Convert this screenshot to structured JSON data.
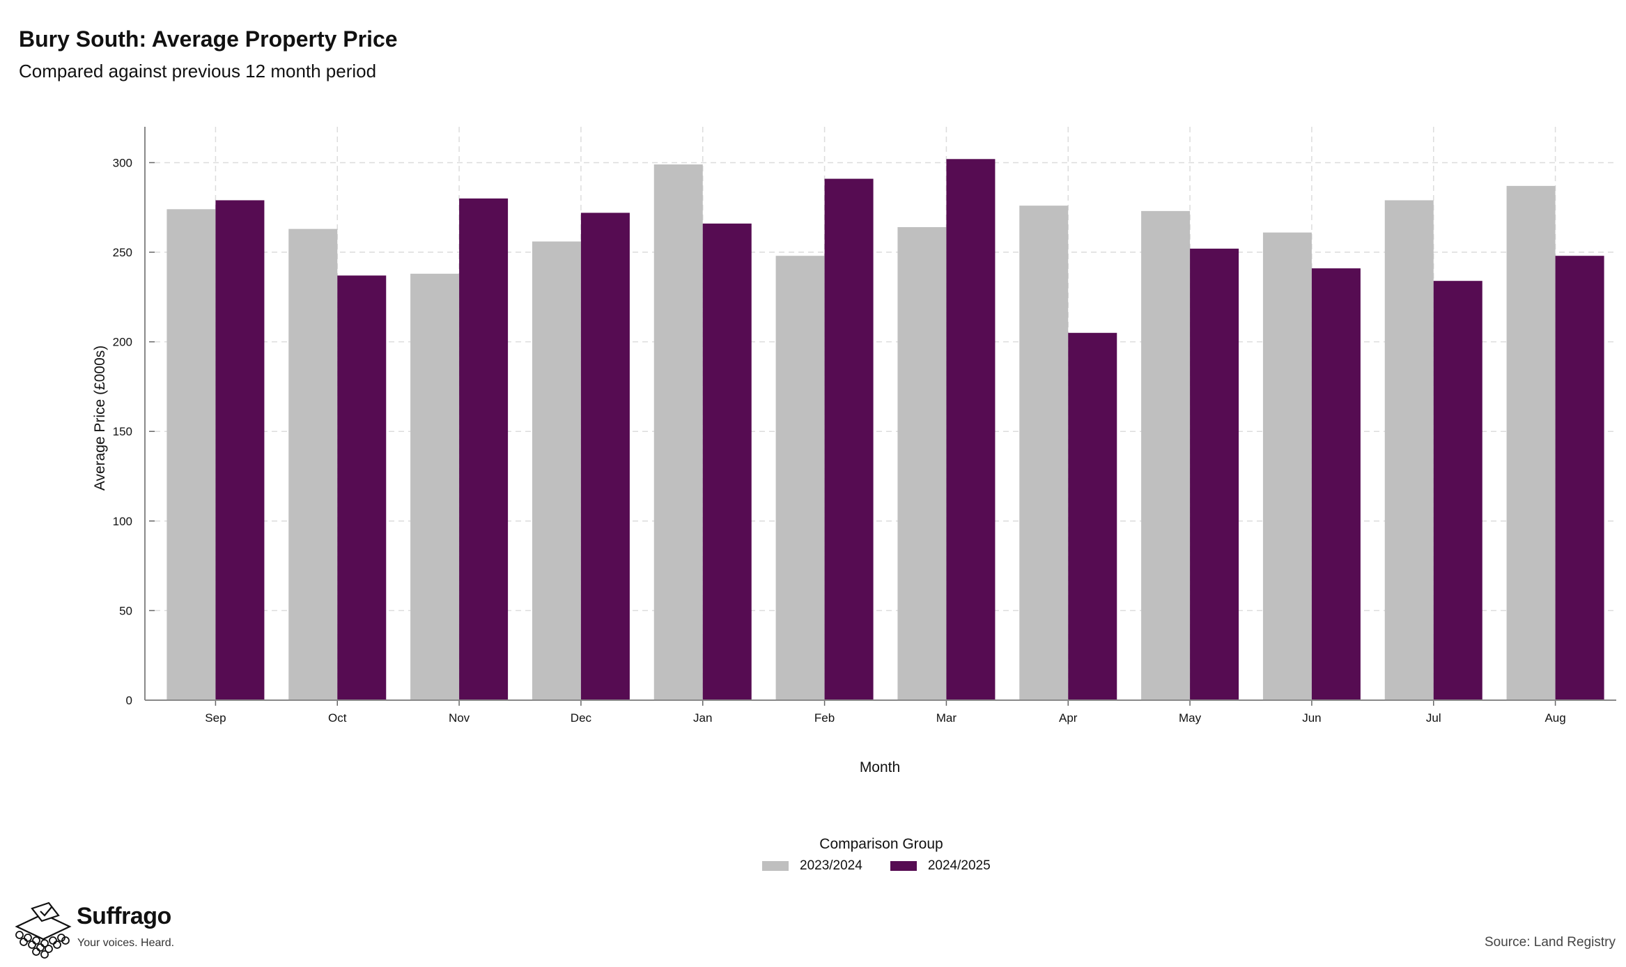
{
  "header": {
    "title": "Bury South: Average Property Price",
    "subtitle": "Compared against previous 12 month period"
  },
  "legend": {
    "title": "Comparison Group",
    "items": [
      {
        "label": "2023/2024",
        "color": "#bfbfbf"
      },
      {
        "label": "2024/2025",
        "color": "#560c52"
      }
    ]
  },
  "footer": {
    "brand_name": "Suffrago",
    "brand_tagline": "Your voices. Heard.",
    "source": "Source: Land Registry"
  },
  "chart_data": {
    "type": "bar",
    "xlabel": "Month",
    "ylabel": "Average Price (£000s)",
    "ylim": [
      0,
      320
    ],
    "yticks": [
      0,
      50,
      100,
      150,
      200,
      250,
      300
    ],
    "grid": true,
    "legend_position": "bottom",
    "categories": [
      "Sep",
      "Oct",
      "Nov",
      "Dec",
      "Jan",
      "Feb",
      "Mar",
      "Apr",
      "May",
      "Jun",
      "Jul",
      "Aug"
    ],
    "series": [
      {
        "name": "2023/2024",
        "color": "#bfbfbf",
        "values": [
          274,
          263,
          238,
          256,
          299,
          248,
          264,
          276,
          273,
          261,
          279,
          287
        ]
      },
      {
        "name": "2024/2025",
        "color": "#560c52",
        "values": [
          279,
          237,
          280,
          272,
          266,
          291,
          302,
          205,
          252,
          241,
          234,
          248
        ]
      }
    ]
  }
}
